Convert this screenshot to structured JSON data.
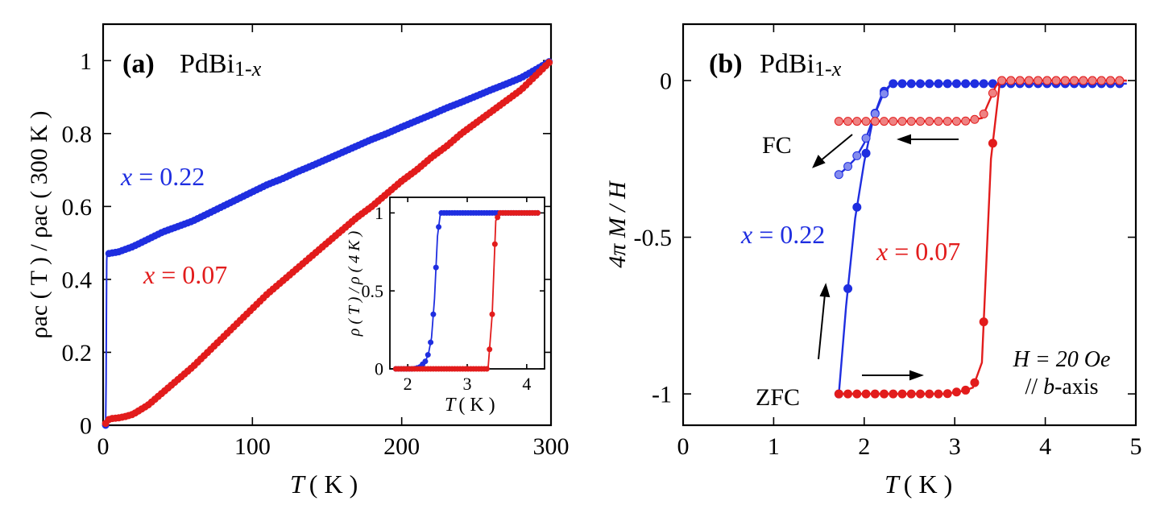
{
  "chart_data": [
    {
      "type": "line",
      "panel_label": "(a)",
      "title_main": "PdBi",
      "title_sub": "1-",
      "title_var": "x",
      "xlabel_var": "T",
      "xlabel_unit": "( K )",
      "ylabel": "ρac ( T ) / ρac ( 300 K )",
      "xlim": [
        0,
        300
      ],
      "ylim": [
        0,
        1.1
      ],
      "xticks": [
        0,
        100,
        200,
        300
      ],
      "xtick_labels": [
        "0",
        "100",
        "200",
        "300"
      ],
      "yticks": [
        0,
        0.2,
        0.4,
        0.6,
        0.8,
        1
      ],
      "ytick_labels": [
        "0",
        "0.2",
        "0.4",
        "0.6",
        "0.8",
        "1"
      ],
      "series": [
        {
          "name": "x = 0.22",
          "label_var": "x",
          "label_rest": " = 0.22",
          "color": "#1f2ee0",
          "x": [
            1.7,
            2,
            2.2,
            2.4,
            2.6,
            3,
            5,
            10,
            20,
            30,
            40,
            50,
            60,
            70,
            80,
            90,
            100,
            110,
            120,
            130,
            140,
            150,
            160,
            170,
            180,
            190,
            200,
            210,
            220,
            230,
            240,
            250,
            260,
            270,
            280,
            290,
            300
          ],
          "y": [
            0,
            0.12,
            0.3,
            0.45,
            0.47,
            0.47,
            0.472,
            0.475,
            0.49,
            0.51,
            0.53,
            0.545,
            0.56,
            0.58,
            0.6,
            0.62,
            0.64,
            0.66,
            0.676,
            0.695,
            0.712,
            0.73,
            0.748,
            0.766,
            0.784,
            0.8,
            0.818,
            0.835,
            0.852,
            0.87,
            0.886,
            0.903,
            0.92,
            0.936,
            0.953,
            0.976,
            1.0
          ]
        },
        {
          "name": "x = 0.07",
          "label_var": "x",
          "label_rest": " = 0.07",
          "color": "#e21c1c",
          "x": [
            1.7,
            3.5,
            5,
            10,
            15,
            20,
            30,
            40,
            50,
            60,
            70,
            80,
            90,
            100,
            110,
            120,
            130,
            140,
            150,
            160,
            170,
            180,
            190,
            200,
            210,
            220,
            230,
            240,
            250,
            260,
            270,
            280,
            290,
            300
          ],
          "y": [
            0.005,
            0.015,
            0.018,
            0.02,
            0.024,
            0.03,
            0.055,
            0.09,
            0.125,
            0.16,
            0.2,
            0.24,
            0.28,
            0.32,
            0.36,
            0.395,
            0.43,
            0.465,
            0.5,
            0.535,
            0.57,
            0.6,
            0.635,
            0.67,
            0.7,
            0.735,
            0.765,
            0.8,
            0.83,
            0.86,
            0.89,
            0.92,
            0.96,
            1.0
          ]
        }
      ],
      "inset": {
        "xlabel_var": "T",
        "xlabel_unit": "( K )",
        "ylabel": "ρ ( T ) / ρ ( 4 K )",
        "xlim": [
          1.7,
          4.3
        ],
        "ylim": [
          0,
          1.1
        ],
        "xticks": [
          2,
          3,
          4
        ],
        "xtick_labels": [
          "2",
          "3",
          "4"
        ],
        "yticks": [
          0,
          0.5,
          1
        ],
        "ytick_labels": [
          "0",
          "0.5",
          "1"
        ],
        "series": [
          {
            "name": "x = 0.22",
            "color": "#1f2ee0",
            "x": [
              1.8,
              1.9,
              2.0,
              2.1,
              2.2,
              2.3,
              2.35,
              2.4,
              2.45,
              2.5,
              2.55,
              2.6,
              2.8,
              3.0,
              3.2,
              3.4,
              3.6,
              3.8,
              4.0,
              4.2
            ],
            "y": [
              0,
              0,
              0,
              0,
              0.01,
              0.05,
              0.1,
              0.2,
              0.45,
              0.85,
              1,
              1,
              1,
              1,
              1,
              1,
              1,
              1,
              1,
              1
            ]
          },
          {
            "name": "x = 0.07",
            "color": "#e21c1c",
            "x": [
              1.8,
              2.0,
              2.2,
              2.4,
              2.6,
              2.8,
              3.0,
              3.2,
              3.35,
              3.42,
              3.48,
              3.55,
              3.7,
              3.9,
              4.1,
              4.2
            ],
            "y": [
              0,
              0,
              0,
              0,
              0,
              0,
              0,
              0,
              0,
              0.35,
              0.95,
              1,
              1,
              1,
              1,
              1
            ]
          }
        ]
      }
    },
    {
      "type": "line",
      "panel_label": "(b)",
      "title_main": "PdBi",
      "title_sub": "1-",
      "title_var": "x",
      "xlabel_var": "T",
      "xlabel_unit": "( K )",
      "ylabel": "4π M / H",
      "xlim": [
        0,
        5
      ],
      "ylim": [
        -1.1,
        0.18
      ],
      "xticks": [
        0,
        1,
        2,
        3,
        4,
        5
      ],
      "xtick_labels": [
        "0",
        "1",
        "2",
        "3",
        "4",
        "5"
      ],
      "yticks": [
        -1,
        -0.5,
        0
      ],
      "ytick_labels": [
        "-1",
        "-0.5",
        "0"
      ],
      "series": [
        {
          "name": "x = 0.22 ZFC",
          "color": "#1f2ee0",
          "x": [
            1.72,
            1.8,
            1.9,
            2.0,
            2.1,
            2.2,
            2.3,
            2.5,
            2.7,
            2.9,
            3.1,
            3.3,
            3.5,
            3.7,
            3.9,
            4.1,
            4.3,
            4.5,
            4.7,
            4.9
          ],
          "y": [
            -1.0,
            -0.72,
            -0.44,
            -0.26,
            -0.12,
            -0.04,
            -0.01,
            -0.01,
            -0.01,
            -0.01,
            -0.01,
            -0.01,
            -0.01,
            -0.01,
            -0.01,
            -0.01,
            -0.01,
            -0.01,
            -0.01,
            -0.01
          ]
        },
        {
          "name": "x = 0.22 FC",
          "color": "#1f2ee0",
          "x": [
            1.72,
            1.8,
            1.9,
            2.0,
            2.1,
            2.2,
            2.3
          ],
          "y": [
            -0.3,
            -0.28,
            -0.25,
            -0.2,
            -0.12,
            -0.05,
            -0.01
          ]
        },
        {
          "name": "x = 0.07 ZFC",
          "color": "#e21c1c",
          "x": [
            1.72,
            1.9,
            2.1,
            2.3,
            2.5,
            2.7,
            2.9,
            3.1,
            3.2,
            3.3,
            3.4,
            3.5,
            3.7,
            3.9,
            4.1,
            4.3,
            4.5,
            4.7,
            4.9
          ],
          "y": [
            -1.0,
            -1.0,
            -1.0,
            -1.0,
            -1.0,
            -1.0,
            -1.0,
            -0.99,
            -0.98,
            -0.9,
            -0.25,
            0.0,
            0.0,
            0.0,
            0.0,
            0.0,
            0.0,
            0.0,
            0.0
          ]
        },
        {
          "name": "x = 0.07 FC",
          "color": "#e21c1c",
          "x": [
            1.72,
            1.9,
            2.1,
            2.3,
            2.5,
            2.7,
            2.9,
            3.1,
            3.3,
            3.45,
            3.5,
            3.7,
            3.9,
            4.1,
            4.3,
            4.5,
            4.7,
            4.9
          ],
          "y": [
            -0.13,
            -0.13,
            -0.13,
            -0.13,
            -0.13,
            -0.13,
            -0.13,
            -0.13,
            -0.12,
            -0.02,
            0.0,
            0.0,
            0.0,
            0.0,
            0.0,
            0.0,
            0.0,
            0.0
          ]
        }
      ],
      "annotations": {
        "fc": "FC",
        "zfc": "ZFC",
        "x022_var": "x",
        "x022_rest": " = 0.22",
        "x007_var": "x",
        "x007_rest": " = 0.07",
        "field_line1": "H = 20 Oe",
        "field_line2_a": "// ",
        "field_line2_b": "b",
        "field_line2_c": "-axis"
      }
    }
  ]
}
